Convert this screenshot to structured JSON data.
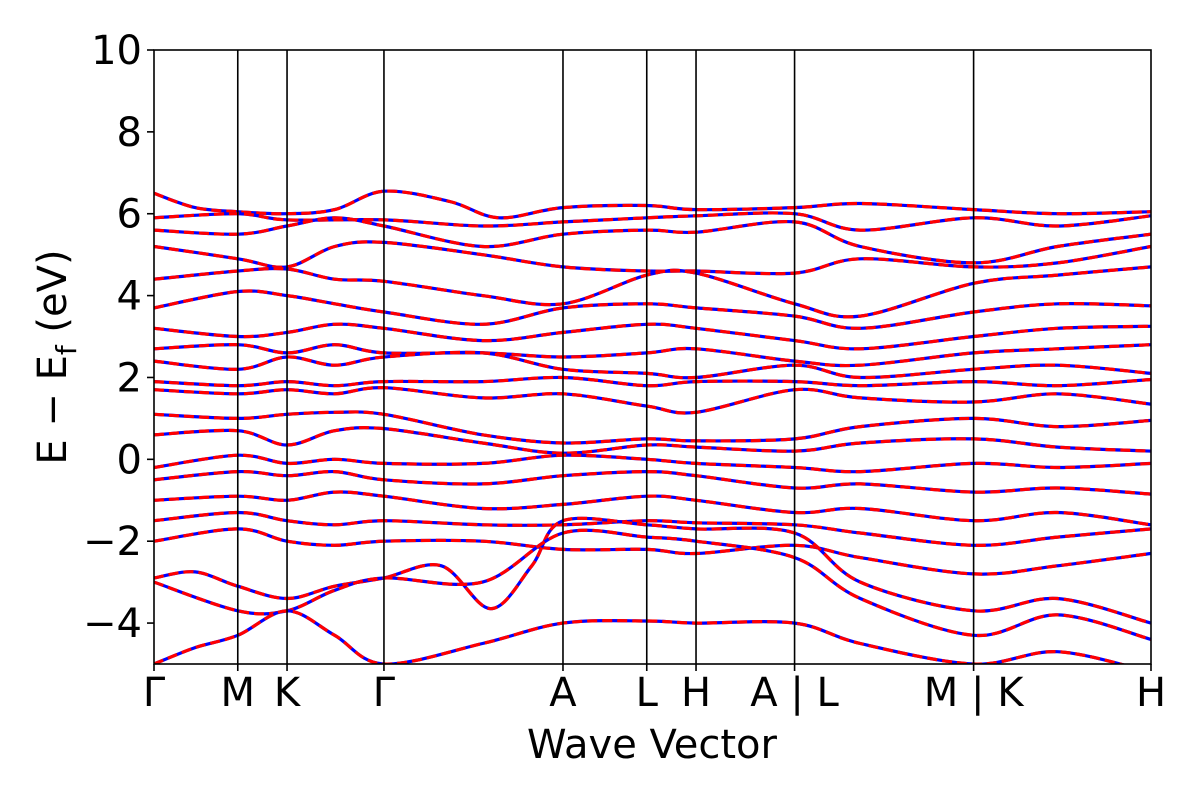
{
  "chart_data": {
    "type": "line",
    "title": "",
    "xlabel": "Wave Vector",
    "ylabel": "E − E_f (eV)",
    "ylabel_parts": {
      "main": "E − E",
      "sub": "f",
      "unit": " (eV)"
    },
    "ylim": [
      -5,
      10
    ],
    "yticks": [
      -4,
      -2,
      0,
      2,
      4,
      6,
      8,
      10
    ],
    "ytick_labels": [
      "−4",
      "−2",
      "0",
      "2",
      "4",
      "6",
      "8",
      "10"
    ],
    "kpath": {
      "xlim": [
        0,
        6.07
      ],
      "ticks": [
        {
          "label": "Γ",
          "x": 0.0
        },
        {
          "label": "M",
          "x": 0.51
        },
        {
          "label": "K",
          "x": 0.81
        },
        {
          "label": "Γ",
          "x": 1.4
        },
        {
          "label": "A",
          "x": 2.49
        },
        {
          "label": "L",
          "x": 3.0
        },
        {
          "label": "H",
          "x": 3.3
        },
        {
          "label": "A | L",
          "x": 3.9
        },
        {
          "label": "M | K",
          "x": 4.99
        },
        {
          "label": "H",
          "x": 6.07
        }
      ]
    },
    "grid": false,
    "series_colors": {
      "spin_up": "#ff0000",
      "spin_down": "#0000ff"
    },
    "bands": [
      [
        [
          0.0,
          6.5
        ],
        [
          0.25,
          6.15
        ],
        [
          0.51,
          6.05
        ],
        [
          0.81,
          6.0
        ],
        [
          1.1,
          6.1
        ],
        [
          1.4,
          6.55
        ],
        [
          1.8,
          6.3
        ],
        [
          2.1,
          5.9
        ],
        [
          2.49,
          6.15
        ],
        [
          3.0,
          6.2
        ],
        [
          3.3,
          6.1
        ],
        [
          3.9,
          6.15
        ],
        [
          4.3,
          6.25
        ],
        [
          4.99,
          6.1
        ],
        [
          5.5,
          6.0
        ],
        [
          6.07,
          6.05
        ]
      ],
      [
        [
          0.0,
          5.9
        ],
        [
          0.51,
          6.0
        ],
        [
          0.81,
          5.85
        ],
        [
          1.4,
          5.85
        ],
        [
          2.0,
          5.7
        ],
        [
          2.49,
          5.8
        ],
        [
          3.0,
          5.9
        ],
        [
          3.3,
          5.95
        ],
        [
          3.9,
          6.0
        ],
        [
          4.3,
          5.6
        ],
        [
          4.99,
          5.9
        ],
        [
          5.5,
          5.7
        ],
        [
          6.07,
          5.95
        ]
      ],
      [
        [
          0.0,
          5.6
        ],
        [
          0.51,
          5.5
        ],
        [
          0.81,
          5.7
        ],
        [
          1.1,
          5.9
        ],
        [
          1.4,
          5.7
        ],
        [
          2.0,
          5.2
        ],
        [
          2.49,
          5.5
        ],
        [
          3.0,
          5.6
        ],
        [
          3.3,
          5.55
        ],
        [
          3.9,
          5.8
        ],
        [
          4.3,
          5.2
        ],
        [
          4.99,
          4.8
        ],
        [
          5.5,
          5.2
        ],
        [
          6.07,
          5.5
        ]
      ],
      [
        [
          0.0,
          5.2
        ],
        [
          0.51,
          4.9
        ],
        [
          0.81,
          4.7
        ],
        [
          1.1,
          5.2
        ],
        [
          1.4,
          5.3
        ],
        [
          2.0,
          5.0
        ],
        [
          2.49,
          4.7
        ],
        [
          3.0,
          4.6
        ],
        [
          3.3,
          4.6
        ],
        [
          3.9,
          4.55
        ],
        [
          4.3,
          4.9
        ],
        [
          4.99,
          4.7
        ],
        [
          5.5,
          4.8
        ],
        [
          6.07,
          5.2
        ]
      ],
      [
        [
          0.0,
          4.4
        ],
        [
          0.51,
          4.6
        ],
        [
          0.81,
          4.65
        ],
        [
          1.1,
          4.4
        ],
        [
          1.4,
          4.35
        ],
        [
          2.0,
          4.0
        ],
        [
          2.49,
          3.8
        ],
        [
          3.0,
          4.5
        ],
        [
          3.3,
          4.55
        ],
        [
          3.9,
          3.8
        ],
        [
          4.3,
          3.5
        ],
        [
          4.99,
          4.3
        ],
        [
          5.5,
          4.5
        ],
        [
          6.07,
          4.7
        ]
      ],
      [
        [
          0.0,
          3.7
        ],
        [
          0.51,
          4.1
        ],
        [
          0.81,
          4.0
        ],
        [
          1.1,
          3.8
        ],
        [
          1.4,
          3.6
        ],
        [
          2.0,
          3.3
        ],
        [
          2.49,
          3.7
        ],
        [
          3.0,
          3.8
        ],
        [
          3.3,
          3.7
        ],
        [
          3.9,
          3.5
        ],
        [
          4.3,
          3.2
        ],
        [
          4.99,
          3.6
        ],
        [
          5.5,
          3.8
        ],
        [
          6.07,
          3.75
        ]
      ],
      [
        [
          0.0,
          3.2
        ],
        [
          0.51,
          3.0
        ],
        [
          0.81,
          3.1
        ],
        [
          1.1,
          3.3
        ],
        [
          1.4,
          3.2
        ],
        [
          2.0,
          2.9
        ],
        [
          2.49,
          3.1
        ],
        [
          3.0,
          3.3
        ],
        [
          3.3,
          3.2
        ],
        [
          3.9,
          2.9
        ],
        [
          4.3,
          2.7
        ],
        [
          4.99,
          3.0
        ],
        [
          5.5,
          3.2
        ],
        [
          6.07,
          3.25
        ]
      ],
      [
        [
          0.0,
          2.7
        ],
        [
          0.51,
          2.8
        ],
        [
          0.81,
          2.6
        ],
        [
          1.1,
          2.8
        ],
        [
          1.4,
          2.6
        ],
        [
          2.0,
          2.6
        ],
        [
          2.49,
          2.5
        ],
        [
          3.0,
          2.6
        ],
        [
          3.3,
          2.7
        ],
        [
          3.9,
          2.4
        ],
        [
          4.3,
          2.3
        ],
        [
          4.99,
          2.6
        ],
        [
          5.5,
          2.7
        ],
        [
          6.07,
          2.8
        ]
      ],
      [
        [
          0.0,
          2.4
        ],
        [
          0.51,
          2.2
        ],
        [
          0.81,
          2.5
        ],
        [
          1.1,
          2.3
        ],
        [
          1.4,
          2.5
        ],
        [
          2.0,
          2.6
        ],
        [
          2.49,
          2.2
        ],
        [
          3.0,
          2.1
        ],
        [
          3.3,
          2.0
        ],
        [
          3.9,
          2.3
        ],
        [
          4.3,
          2.0
        ],
        [
          4.99,
          2.2
        ],
        [
          5.5,
          2.3
        ],
        [
          6.07,
          2.1
        ]
      ],
      [
        [
          0.0,
          1.9
        ],
        [
          0.51,
          1.8
        ],
        [
          0.81,
          1.9
        ],
        [
          1.1,
          1.8
        ],
        [
          1.4,
          1.9
        ],
        [
          2.0,
          1.9
        ],
        [
          2.49,
          2.0
        ],
        [
          3.0,
          1.8
        ],
        [
          3.3,
          1.9
        ],
        [
          3.9,
          1.9
        ],
        [
          4.3,
          1.8
        ],
        [
          4.99,
          1.9
        ],
        [
          5.5,
          1.8
        ],
        [
          6.07,
          1.95
        ]
      ],
      [
        [
          0.0,
          1.7
        ],
        [
          0.51,
          1.6
        ],
        [
          0.81,
          1.7
        ],
        [
          1.1,
          1.6
        ],
        [
          1.4,
          1.75
        ],
        [
          2.0,
          1.5
        ],
        [
          2.49,
          1.6
        ],
        [
          3.0,
          1.3
        ],
        [
          3.3,
          1.15
        ],
        [
          3.9,
          1.7
        ],
        [
          4.3,
          1.5
        ],
        [
          4.99,
          1.4
        ],
        [
          5.5,
          1.6
        ],
        [
          6.07,
          1.35
        ]
      ],
      [
        [
          0.0,
          1.1
        ],
        [
          0.51,
          1.0
        ],
        [
          0.81,
          1.1
        ],
        [
          1.1,
          1.15
        ],
        [
          1.4,
          1.1
        ],
        [
          2.0,
          0.6
        ],
        [
          2.49,
          0.4
        ],
        [
          3.0,
          0.5
        ],
        [
          3.3,
          0.45
        ],
        [
          3.9,
          0.5
        ],
        [
          4.3,
          0.8
        ],
        [
          4.99,
          1.0
        ],
        [
          5.5,
          0.8
        ],
        [
          6.07,
          0.95
        ]
      ],
      [
        [
          0.0,
          0.6
        ],
        [
          0.51,
          0.7
        ],
        [
          0.81,
          0.35
        ],
        [
          1.1,
          0.7
        ],
        [
          1.4,
          0.75
        ],
        [
          2.0,
          0.4
        ],
        [
          2.49,
          0.15
        ],
        [
          3.0,
          0.35
        ],
        [
          3.3,
          0.3
        ],
        [
          3.9,
          0.2
        ],
        [
          4.3,
          0.4
        ],
        [
          4.99,
          0.5
        ],
        [
          5.5,
          0.3
        ],
        [
          6.07,
          0.2
        ]
      ],
      [
        [
          0.0,
          -0.2
        ],
        [
          0.51,
          0.1
        ],
        [
          0.81,
          -0.1
        ],
        [
          1.1,
          0.0
        ],
        [
          1.4,
          -0.1
        ],
        [
          2.0,
          -0.1
        ],
        [
          2.49,
          0.1
        ],
        [
          3.0,
          0.0
        ],
        [
          3.3,
          -0.1
        ],
        [
          3.9,
          -0.2
        ],
        [
          4.3,
          -0.3
        ],
        [
          4.99,
          -0.1
        ],
        [
          5.5,
          -0.2
        ],
        [
          6.07,
          -0.1
        ]
      ],
      [
        [
          0.0,
          -0.5
        ],
        [
          0.51,
          -0.3
        ],
        [
          0.81,
          -0.4
        ],
        [
          1.1,
          -0.3
        ],
        [
          1.4,
          -0.5
        ],
        [
          2.0,
          -0.6
        ],
        [
          2.49,
          -0.4
        ],
        [
          3.0,
          -0.3
        ],
        [
          3.3,
          -0.4
        ],
        [
          3.9,
          -0.7
        ],
        [
          4.3,
          -0.6
        ],
        [
          4.99,
          -0.8
        ],
        [
          5.5,
          -0.7
        ],
        [
          6.07,
          -0.85
        ]
      ],
      [
        [
          0.0,
          -1.0
        ],
        [
          0.51,
          -0.9
        ],
        [
          0.81,
          -1.0
        ],
        [
          1.1,
          -0.8
        ],
        [
          1.4,
          -0.9
        ],
        [
          2.0,
          -1.2
        ],
        [
          2.49,
          -1.1
        ],
        [
          3.0,
          -0.9
        ],
        [
          3.3,
          -1.0
        ],
        [
          3.9,
          -1.3
        ],
        [
          4.3,
          -1.2
        ],
        [
          4.99,
          -1.5
        ],
        [
          5.5,
          -1.3
        ],
        [
          6.07,
          -1.6
        ]
      ],
      [
        [
          0.0,
          -1.5
        ],
        [
          0.51,
          -1.3
        ],
        [
          0.81,
          -1.5
        ],
        [
          1.1,
          -1.6
        ],
        [
          1.4,
          -1.5
        ],
        [
          2.0,
          -1.6
        ],
        [
          2.49,
          -1.6
        ],
        [
          3.0,
          -1.5
        ],
        [
          3.3,
          -1.55
        ],
        [
          3.9,
          -1.6
        ],
        [
          4.3,
          -1.8
        ],
        [
          4.99,
          -2.1
        ],
        [
          5.5,
          -1.9
        ],
        [
          6.07,
          -1.7
        ]
      ],
      [
        [
          0.0,
          -2.0
        ],
        [
          0.51,
          -1.7
        ],
        [
          0.81,
          -2.0
        ],
        [
          1.1,
          -2.1
        ],
        [
          1.4,
          -2.0
        ],
        [
          2.0,
          -2.0
        ],
        [
          2.49,
          -2.2
        ],
        [
          3.0,
          -2.2
        ],
        [
          3.3,
          -2.3
        ],
        [
          3.9,
          -2.1
        ],
        [
          4.3,
          -2.4
        ],
        [
          4.99,
          -2.8
        ],
        [
          5.5,
          -2.6
        ],
        [
          6.07,
          -2.3
        ]
      ],
      [
        [
          0.0,
          -2.9
        ],
        [
          0.25,
          -2.75
        ],
        [
          0.51,
          -3.1
        ],
        [
          0.81,
          -3.4
        ],
        [
          1.1,
          -3.1
        ],
        [
          1.4,
          -2.9
        ],
        [
          1.75,
          -2.6
        ],
        [
          2.05,
          -3.65
        ],
        [
          2.3,
          -2.6
        ],
        [
          2.49,
          -1.5
        ],
        [
          3.0,
          -1.6
        ],
        [
          3.3,
          -1.7
        ],
        [
          3.9,
          -1.8
        ],
        [
          4.3,
          -3.0
        ],
        [
          4.99,
          -3.7
        ],
        [
          5.5,
          -3.4
        ],
        [
          6.07,
          -4.0
        ]
      ],
      [
        [
          0.0,
          -3.0
        ],
        [
          0.51,
          -3.7
        ],
        [
          0.81,
          -3.7
        ],
        [
          1.1,
          -3.2
        ],
        [
          1.4,
          -2.9
        ],
        [
          2.0,
          -3.0
        ],
        [
          2.49,
          -1.8
        ],
        [
          3.0,
          -1.9
        ],
        [
          3.3,
          -2.0
        ],
        [
          3.9,
          -2.4
        ],
        [
          4.3,
          -3.4
        ],
        [
          4.99,
          -4.3
        ],
        [
          5.5,
          -3.8
        ],
        [
          6.07,
          -4.4
        ]
      ],
      [
        [
          0.0,
          -5.0
        ],
        [
          0.25,
          -4.6
        ],
        [
          0.51,
          -4.3
        ],
        [
          0.81,
          -3.7
        ],
        [
          1.1,
          -4.3
        ],
        [
          1.4,
          -5.0
        ],
        [
          2.0,
          -4.5
        ],
        [
          2.49,
          -4.0
        ],
        [
          3.0,
          -3.95
        ],
        [
          3.3,
          -4.0
        ],
        [
          3.9,
          -4.0
        ],
        [
          4.3,
          -4.5
        ],
        [
          4.99,
          -5.0
        ],
        [
          5.5,
          -4.7
        ],
        [
          6.07,
          -5.2
        ]
      ]
    ]
  }
}
